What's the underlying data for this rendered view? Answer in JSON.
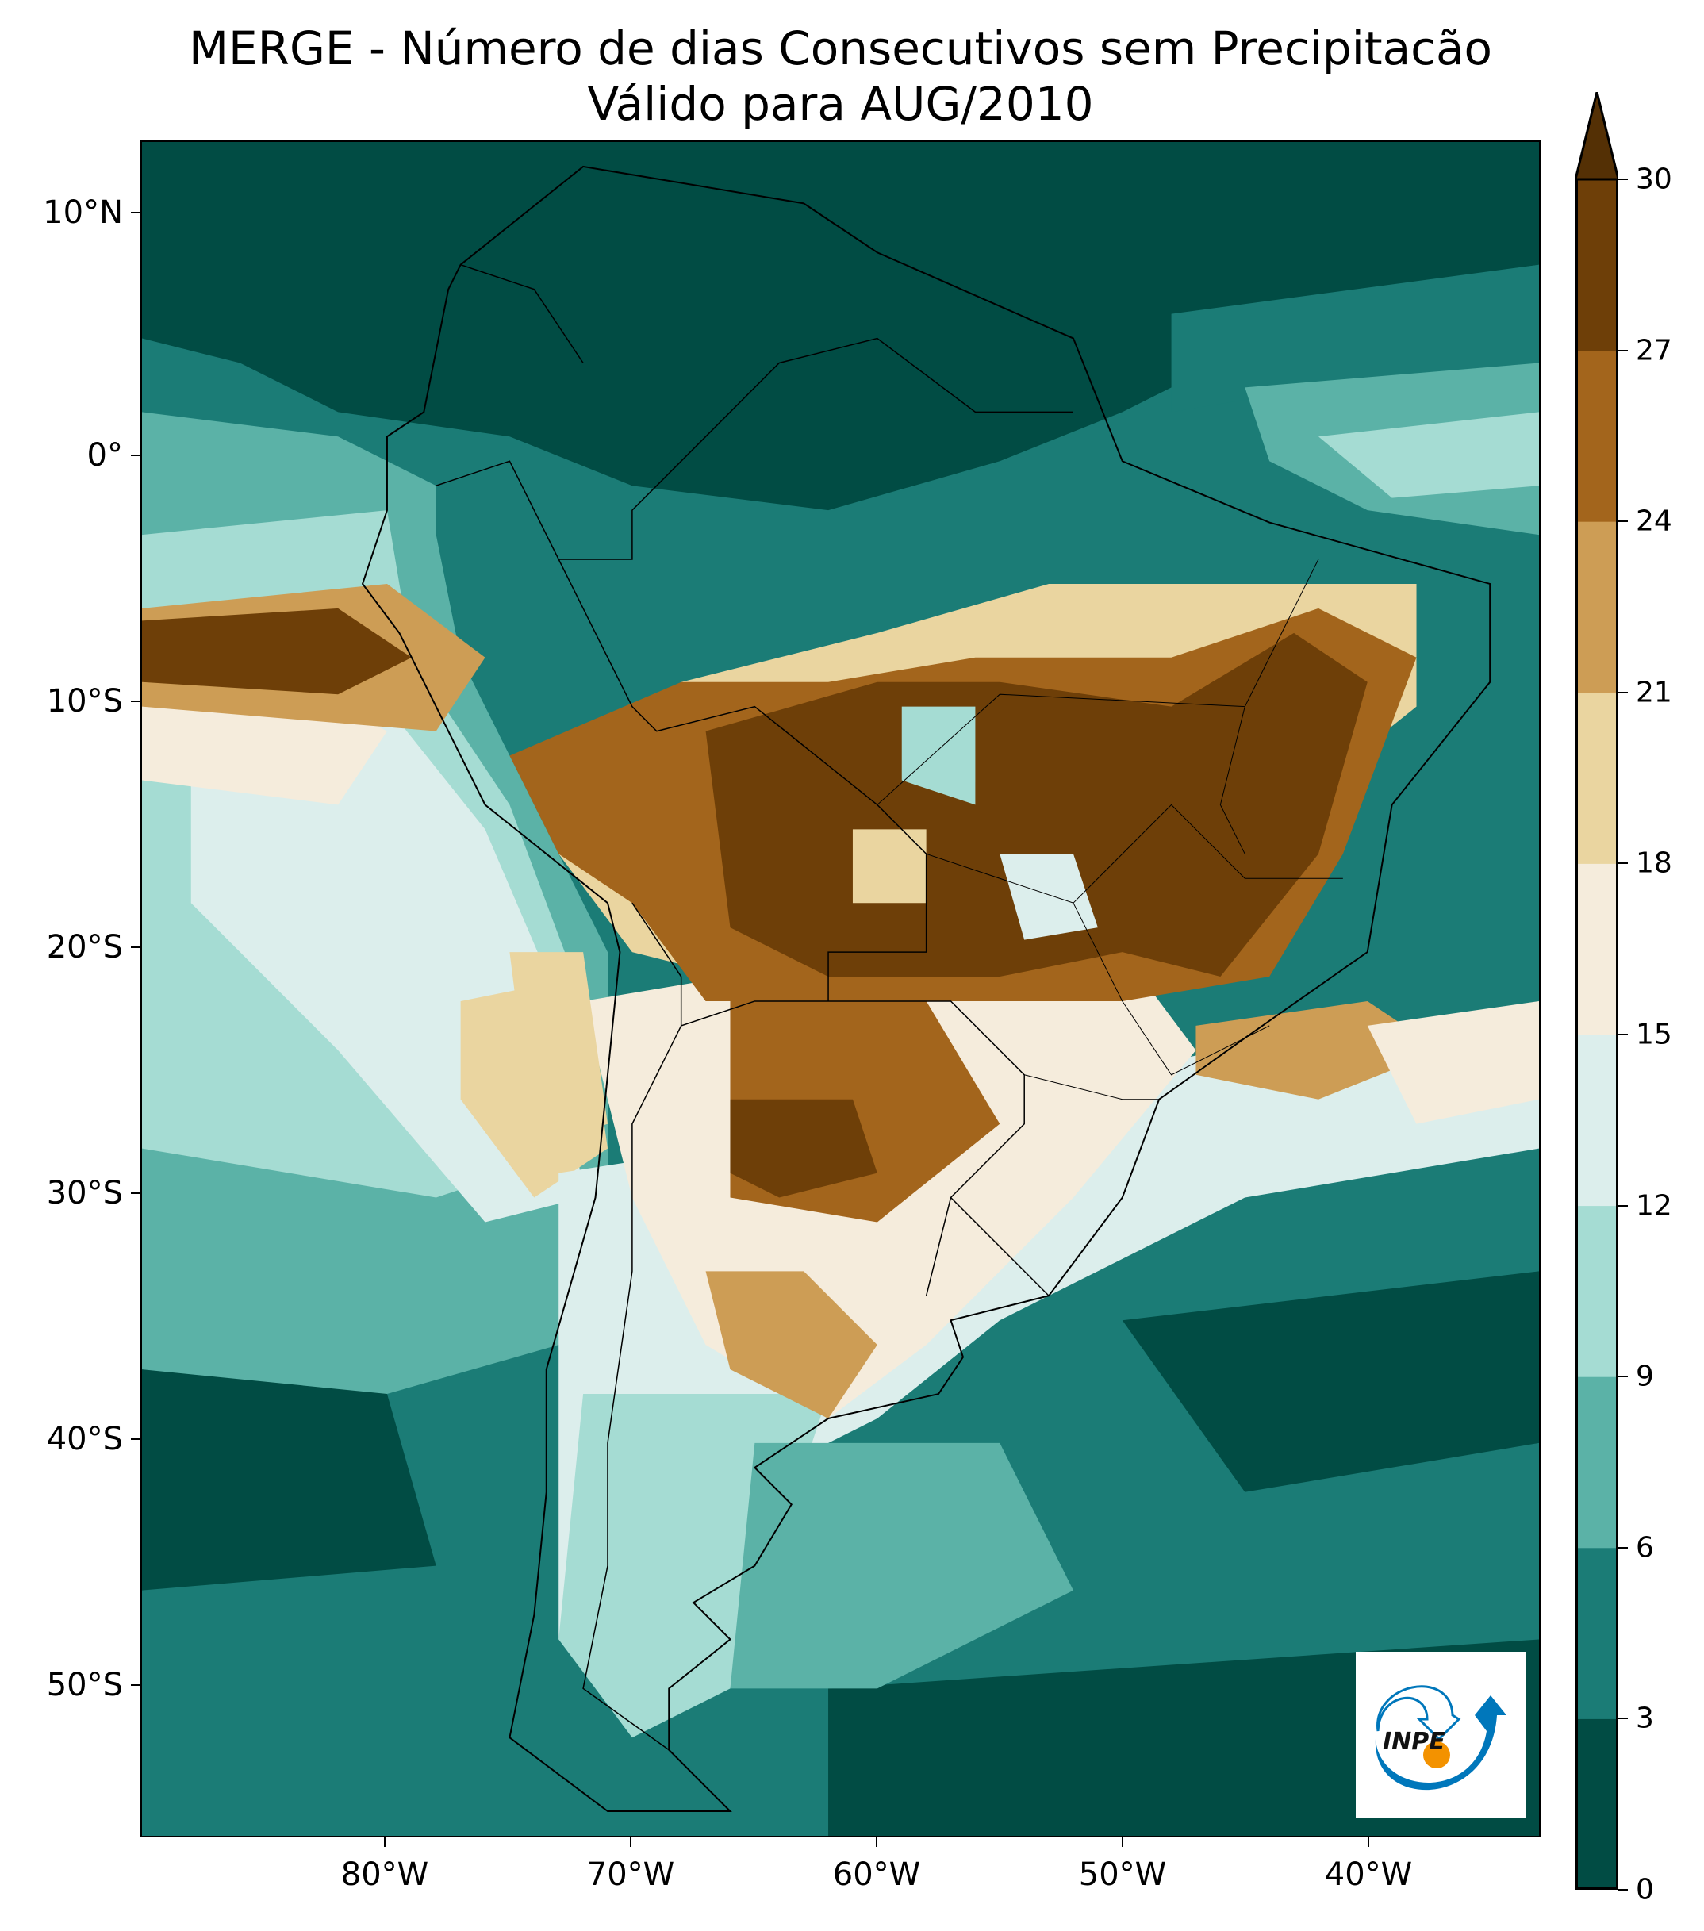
{
  "title": {
    "line1": "MERGE - Número de dias Consecutivos sem Precipitacão",
    "line2": "Válido para AUG/2010"
  },
  "axes": {
    "lat_labels": [
      "10°N",
      "0°",
      "10°S",
      "20°S",
      "30°S",
      "40°S",
      "50°S"
    ],
    "lat_values": [
      10,
      0,
      -10,
      -20,
      -30,
      -40,
      -50
    ],
    "lon_labels": [
      "80°W",
      "70°W",
      "60°W",
      "50°W",
      "40°W"
    ],
    "lon_values": [
      -80,
      -70,
      -60,
      -50,
      -40
    ],
    "lon_range": [
      -90,
      -33
    ],
    "lat_range": [
      -56,
      13
    ]
  },
  "colorbar": {
    "ticks": [
      "0",
      "3",
      "6",
      "9",
      "12",
      "15",
      "18",
      "21",
      "24",
      "27",
      "30"
    ],
    "levels": [
      0,
      3,
      6,
      9,
      12,
      15,
      18,
      21,
      24,
      27,
      30
    ],
    "colors": [
      "#014c44",
      "#1b7c76",
      "#5bb2a7",
      "#a5dcd3",
      "#dceeec",
      "#f5ecdc",
      "#ead5a0",
      "#cd9d55",
      "#a3651c",
      "#6e3f08"
    ],
    "extend_color": "#543005",
    "extend": "max"
  },
  "logo": {
    "text": "INPE",
    "blue": "#0077bb",
    "orange": "#f39200"
  }
}
